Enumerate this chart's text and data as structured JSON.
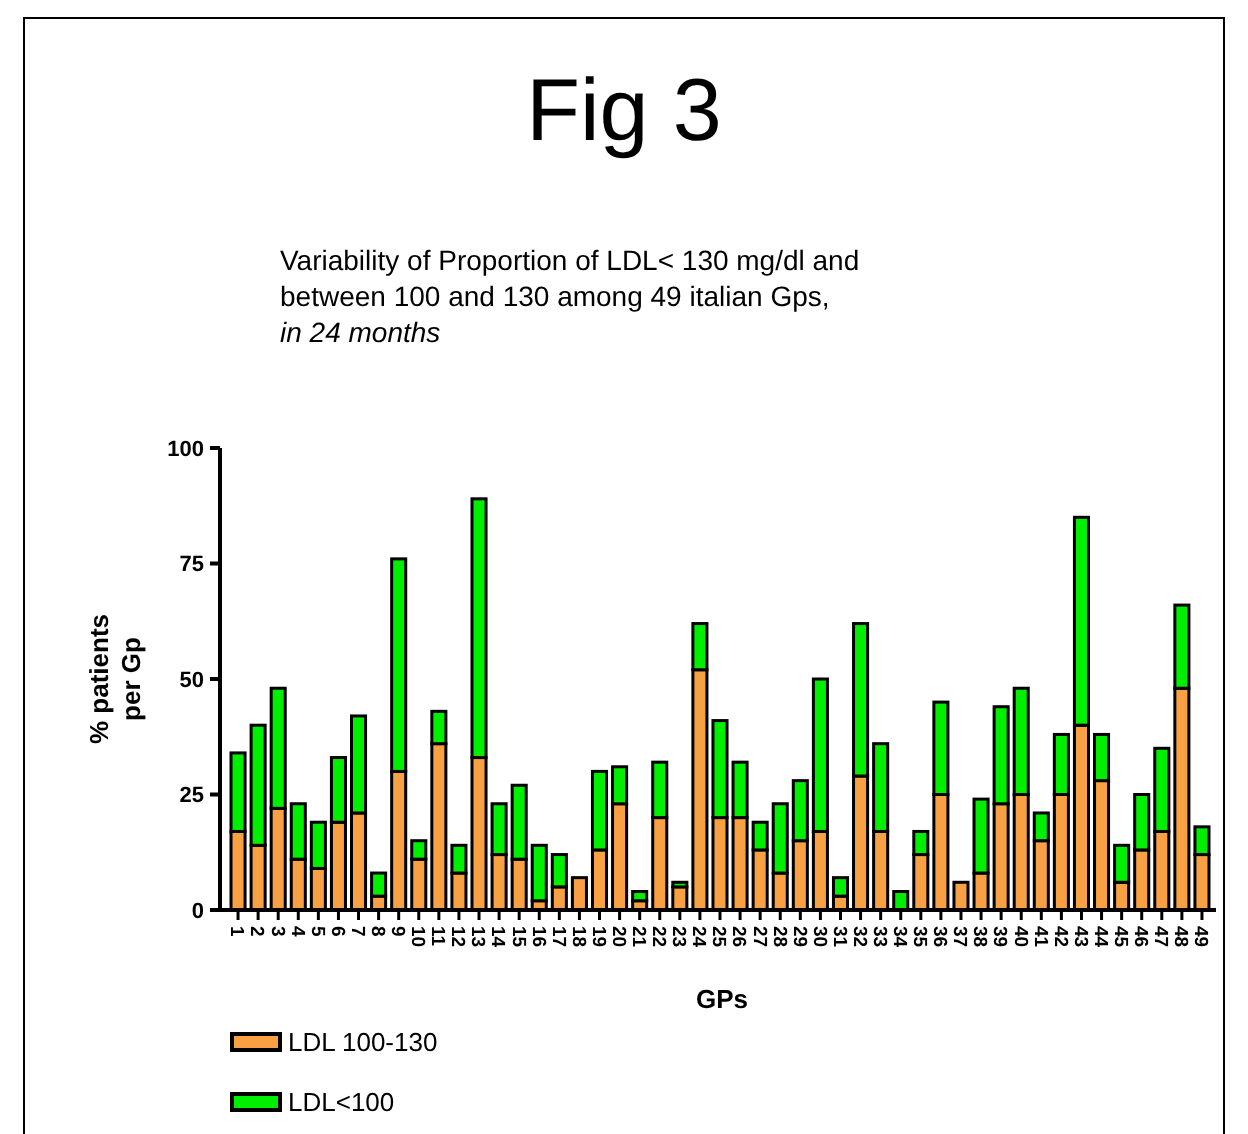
{
  "chart_data": {
    "type": "bar",
    "title": "Fig 3",
    "subtitle": "Variability of Proportion of LDL< 130 mg/dl and between 100 and 130 among 49 italian Gps,",
    "annotations": [
      "in 24 months"
    ],
    "xlabel": "GPs",
    "ylabel": "% patients per Gp",
    "categories": [
      "1",
      "2",
      "3",
      "4",
      "5",
      "6",
      "7",
      "8",
      "9",
      "10",
      "11",
      "12",
      "13",
      "14",
      "15",
      "16",
      "17",
      "18",
      "19",
      "20",
      "21",
      "22",
      "23",
      "24",
      "25",
      "26",
      "27",
      "28",
      "29",
      "30",
      "31",
      "32",
      "33",
      "34",
      "35",
      "36",
      "37",
      "38",
      "39",
      "40",
      "41",
      "42",
      "43",
      "44",
      "45",
      "46",
      "47",
      "48",
      "49"
    ],
    "stacked": true,
    "series": [
      {
        "name": "LDL 100-130",
        "color": "#f7a044",
        "values": [
          17,
          14,
          22,
          11,
          9,
          19,
          21,
          3,
          30,
          11,
          36,
          8,
          33,
          12,
          11,
          2,
          5,
          7,
          13,
          23,
          2,
          20,
          5,
          52,
          20,
          20,
          13,
          8,
          15,
          17,
          3,
          29,
          17,
          0,
          12,
          25,
          6,
          8,
          23,
          25,
          15,
          25,
          40,
          28,
          6,
          13,
          17,
          48,
          12
        ]
      },
      {
        "name": "LDL<100",
        "color": "#00ee00",
        "values": [
          17,
          26,
          26,
          12,
          10,
          14,
          21,
          5,
          46,
          4,
          7,
          6,
          56,
          11,
          16,
          12,
          7,
          0,
          17,
          8,
          2,
          12,
          1,
          10,
          21,
          12,
          6,
          15,
          13,
          33,
          4,
          33,
          19,
          4,
          5,
          20,
          0,
          16,
          21,
          23,
          6,
          13,
          45,
          10,
          8,
          12,
          18,
          18,
          6
        ]
      }
    ],
    "ylim": [
      0,
      100
    ],
    "yticks": [
      0,
      25,
      50,
      75,
      100
    ],
    "grid": false,
    "legend": "bottom left"
  }
}
